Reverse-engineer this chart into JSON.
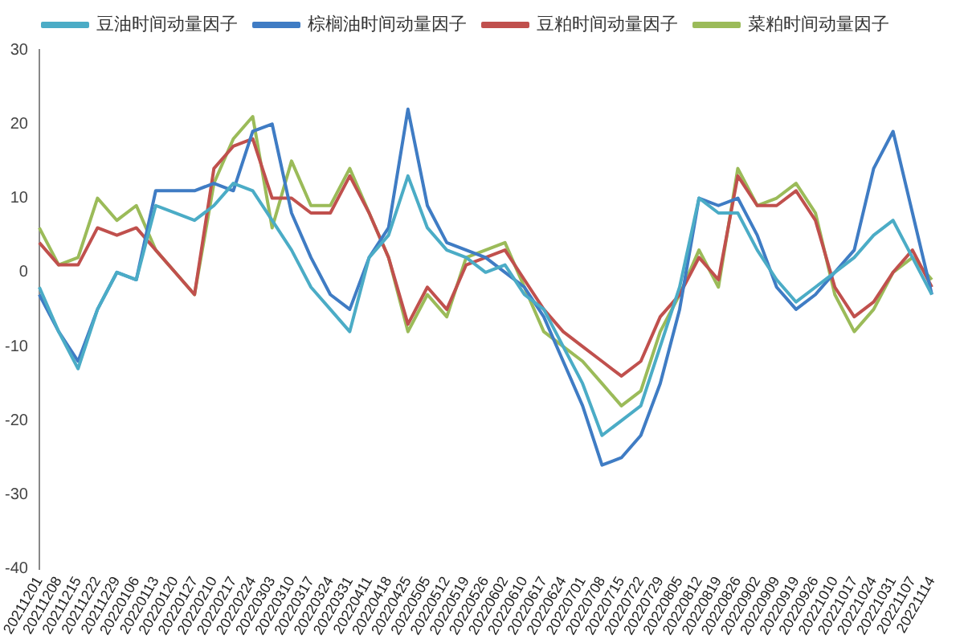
{
  "chart_data": {
    "type": "line",
    "categories": [
      "20211201",
      "20211208",
      "20211215",
      "20211222",
      "20211229",
      "20220106",
      "20220113",
      "20220120",
      "20220127",
      "20220210",
      "20220217",
      "20220224",
      "20220303",
      "20220310",
      "20220317",
      "20220324",
      "20220331",
      "20220411",
      "20220418",
      "20220425",
      "20220505",
      "20220512",
      "20220519",
      "20220526",
      "20220602",
      "20220610",
      "20220617",
      "20220624",
      "20220701",
      "20220708",
      "20220715",
      "20220722",
      "20220729",
      "20220805",
      "20220812",
      "20220819",
      "20220826",
      "20220902",
      "20220909",
      "20220919",
      "20220926",
      "20221010",
      "20221017",
      "20221024",
      "20221031",
      "20221107",
      "20221114"
    ],
    "series": [
      {
        "name": "豆油时间动量因子",
        "color": "#4bacc6",
        "values": [
          -2,
          -8,
          -13,
          -5,
          0,
          -1,
          9,
          8,
          7,
          9,
          12,
          11,
          7,
          3,
          -2,
          -5,
          -8,
          2,
          5,
          13,
          6,
          3,
          2,
          0,
          1,
          -3,
          -5,
          -10,
          -15,
          -22,
          -20,
          -18,
          -10,
          -2,
          10,
          8,
          8,
          3,
          -1,
          -4,
          -2,
          0,
          2,
          5,
          7,
          2,
          -3
        ]
      },
      {
        "name": "棕榈油时间动量因子",
        "color": "#3f7cc4",
        "values": [
          -3,
          -8,
          -12,
          -5,
          0,
          -1,
          11,
          11,
          11,
          12,
          11,
          19,
          20,
          8,
          2,
          -3,
          -5,
          2,
          6,
          22,
          9,
          4,
          3,
          2,
          0,
          -2,
          -6,
          -12,
          -18,
          -26,
          -25,
          -22,
          -15,
          -5,
          10,
          9,
          10,
          5,
          -2,
          -5,
          -3,
          0,
          3,
          14,
          19,
          8,
          -3
        ]
      },
      {
        "name": "豆粕时间动量因子",
        "color": "#c0504d",
        "values": [
          4,
          1,
          1,
          6,
          5,
          6,
          3,
          0,
          -3,
          14,
          17,
          18,
          10,
          10,
          8,
          8,
          13,
          8,
          2,
          -7,
          -2,
          -5,
          1,
          2,
          3,
          -1,
          -5,
          -8,
          -10,
          -12,
          -14,
          -12,
          -6,
          -3,
          2,
          -1,
          13,
          9,
          9,
          11,
          7,
          -2,
          -6,
          -4,
          0,
          3,
          -2
        ]
      },
      {
        "name": "菜粕时间动量因子",
        "color": "#9bbb59",
        "values": [
          6,
          1,
          2,
          10,
          7,
          9,
          3,
          0,
          -3,
          12,
          18,
          21,
          6,
          15,
          9,
          9,
          14,
          8,
          2,
          -8,
          -3,
          -6,
          2,
          3,
          4,
          -2,
          -8,
          -10,
          -12,
          -15,
          -18,
          -16,
          -8,
          -3,
          3,
          -2,
          14,
          9,
          10,
          12,
          8,
          -3,
          -8,
          -5,
          0,
          2,
          -1
        ]
      }
    ],
    "ylim": [
      -40,
      30
    ],
    "yticks": [
      -40,
      -30,
      -20,
      -10,
      0,
      10,
      20,
      30
    ],
    "grid": false,
    "legend": "top",
    "marker": "none",
    "line_style": "solid"
  }
}
